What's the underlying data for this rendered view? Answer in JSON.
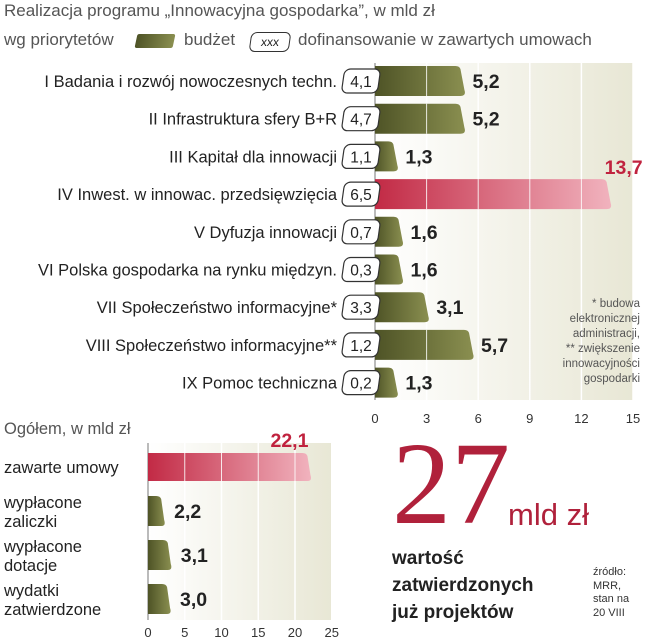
{
  "header": {
    "title": "Realizacja programu „Innowacyjna gospodarka”, w mld zł",
    "by_priority": "wg priorytetów",
    "legend_budget": "budżet",
    "legend_cofin_box": "xxx",
    "legend_cofin": "dofinansowanie w zawartych umowach"
  },
  "notes": {
    "n1": "* budowa",
    "n2": "elektronicznej",
    "n3": "administracji,",
    "n4": "** zwiększenie",
    "n5": "innowacyjności",
    "n6": "gospodarki"
  },
  "summary": {
    "big_number": "27",
    "unit": "mld zł",
    "caption_line1": "wartość",
    "caption_line2": "zatwierdzonych",
    "caption_line3": "już projektów"
  },
  "source": {
    "line1": "źródło:",
    "line2": "MRR,",
    "line3": "stan na",
    "line4": "20 VIII"
  },
  "colors": {
    "olive_dark": "#4e5326",
    "olive_mid": "#8a8f50",
    "red_dark": "#c22a45",
    "red_light": "#f1b3be",
    "plot_bg": "#e8e7d5",
    "red_text": "#c0223e"
  },
  "chart_data": [
    {
      "type": "bar",
      "orientation": "horizontal",
      "categories": [
        "I Badania i rozwój nowoczesnych techn.",
        "II Infrastruktura sfery B+R",
        "III Kapitał dla innowacji",
        "IV Inwest. w innowac. przedsięwzięcia",
        "V Dyfuzja innowacji",
        "VI Polska gospodarka na rynku międzyn.",
        "VII Społeczeństwo informacyjne*",
        "VIII Społeczeństwo informacyjne**",
        "IX Pomoc techniczna"
      ],
      "series": [
        {
          "name": "budżet",
          "values": [
            5.2,
            5.2,
            1.3,
            13.7,
            1.6,
            1.6,
            3.1,
            5.7,
            1.3
          ]
        },
        {
          "name": "dofinansowanie w zawartych umowach",
          "values": [
            4.1,
            4.7,
            1.1,
            6.5,
            0.7,
            0.3,
            3.3,
            1.2,
            0.2
          ]
        }
      ],
      "value_labels": [
        "5,2",
        "5,2",
        "1,3",
        "13,7",
        "1,6",
        "1,6",
        "3,1",
        "5,7",
        "1,3"
      ],
      "cofin_labels": [
        "4,1",
        "4,7",
        "1,1",
        "6,5",
        "0,7",
        "0,3",
        "3,3",
        "1,2",
        "0,2"
      ],
      "highlight_index": 3,
      "xlim": [
        0,
        15
      ],
      "xticks": [
        "0",
        "3",
        "6",
        "9",
        "12",
        "15"
      ]
    },
    {
      "type": "bar",
      "orientation": "horizontal",
      "title": "Ogółem, w mld zł",
      "categories": [
        [
          "zawarte umowy"
        ],
        [
          "wypłacone",
          "zaliczki"
        ],
        [
          "wypłacone",
          "dotacje"
        ],
        [
          "wydatki",
          "zatwierdzone"
        ]
      ],
      "values": [
        22.1,
        2.2,
        3.1,
        3.0
      ],
      "value_labels": [
        "22,1",
        "2,2",
        "3,1",
        "3,0"
      ],
      "highlight_index": 0,
      "xlim": [
        0,
        25
      ],
      "xticks": [
        "0",
        "5",
        "10",
        "15",
        "20",
        "25"
      ]
    }
  ]
}
